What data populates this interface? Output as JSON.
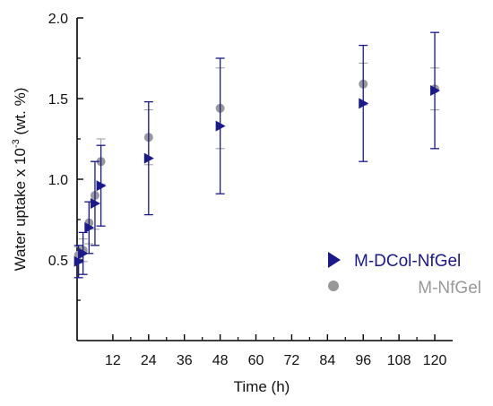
{
  "chart_data": {
    "type": "scatter",
    "title": "",
    "xlabel": "Time (h)",
    "ylabel_parts": [
      "Water uptake x 10",
      "-3",
      " (wt. %)"
    ],
    "xlim": [
      0,
      126
    ],
    "ylim": [
      0,
      2.0
    ],
    "xticks": [
      12,
      24,
      36,
      48,
      60,
      72,
      84,
      96,
      108,
      120
    ],
    "yticks": [
      0.5,
      1.0,
      1.5,
      2.0
    ],
    "ytick_labels": [
      "0.5",
      "1.0",
      "1.5",
      "2.0"
    ],
    "grid": false,
    "legend_position": "right",
    "series": [
      {
        "name": "M-DCol-NfGel",
        "color": "#1a1a8c",
        "marker": "triangle-right",
        "x": [
          0.5,
          2,
          4,
          6,
          8,
          24,
          48,
          96,
          120
        ],
        "y": [
          0.49,
          0.54,
          0.7,
          0.85,
          0.96,
          1.13,
          1.33,
          1.47,
          1.55
        ],
        "err": [
          0.1,
          0.13,
          0.16,
          0.26,
          0.25,
          0.35,
          0.42,
          0.36,
          0.36
        ]
      },
      {
        "name": "M-NfGel",
        "color": "#999999",
        "marker": "circle",
        "x": [
          0.5,
          2,
          4,
          6,
          8,
          24,
          48,
          96,
          120
        ],
        "y": [
          0.53,
          0.56,
          0.73,
          0.9,
          1.11,
          1.26,
          1.44,
          1.59,
          1.56
        ],
        "err": [
          0.05,
          0.07,
          0.13,
          0.21,
          0.14,
          0.17,
          0.25,
          0.13,
          0.13
        ]
      }
    ]
  }
}
